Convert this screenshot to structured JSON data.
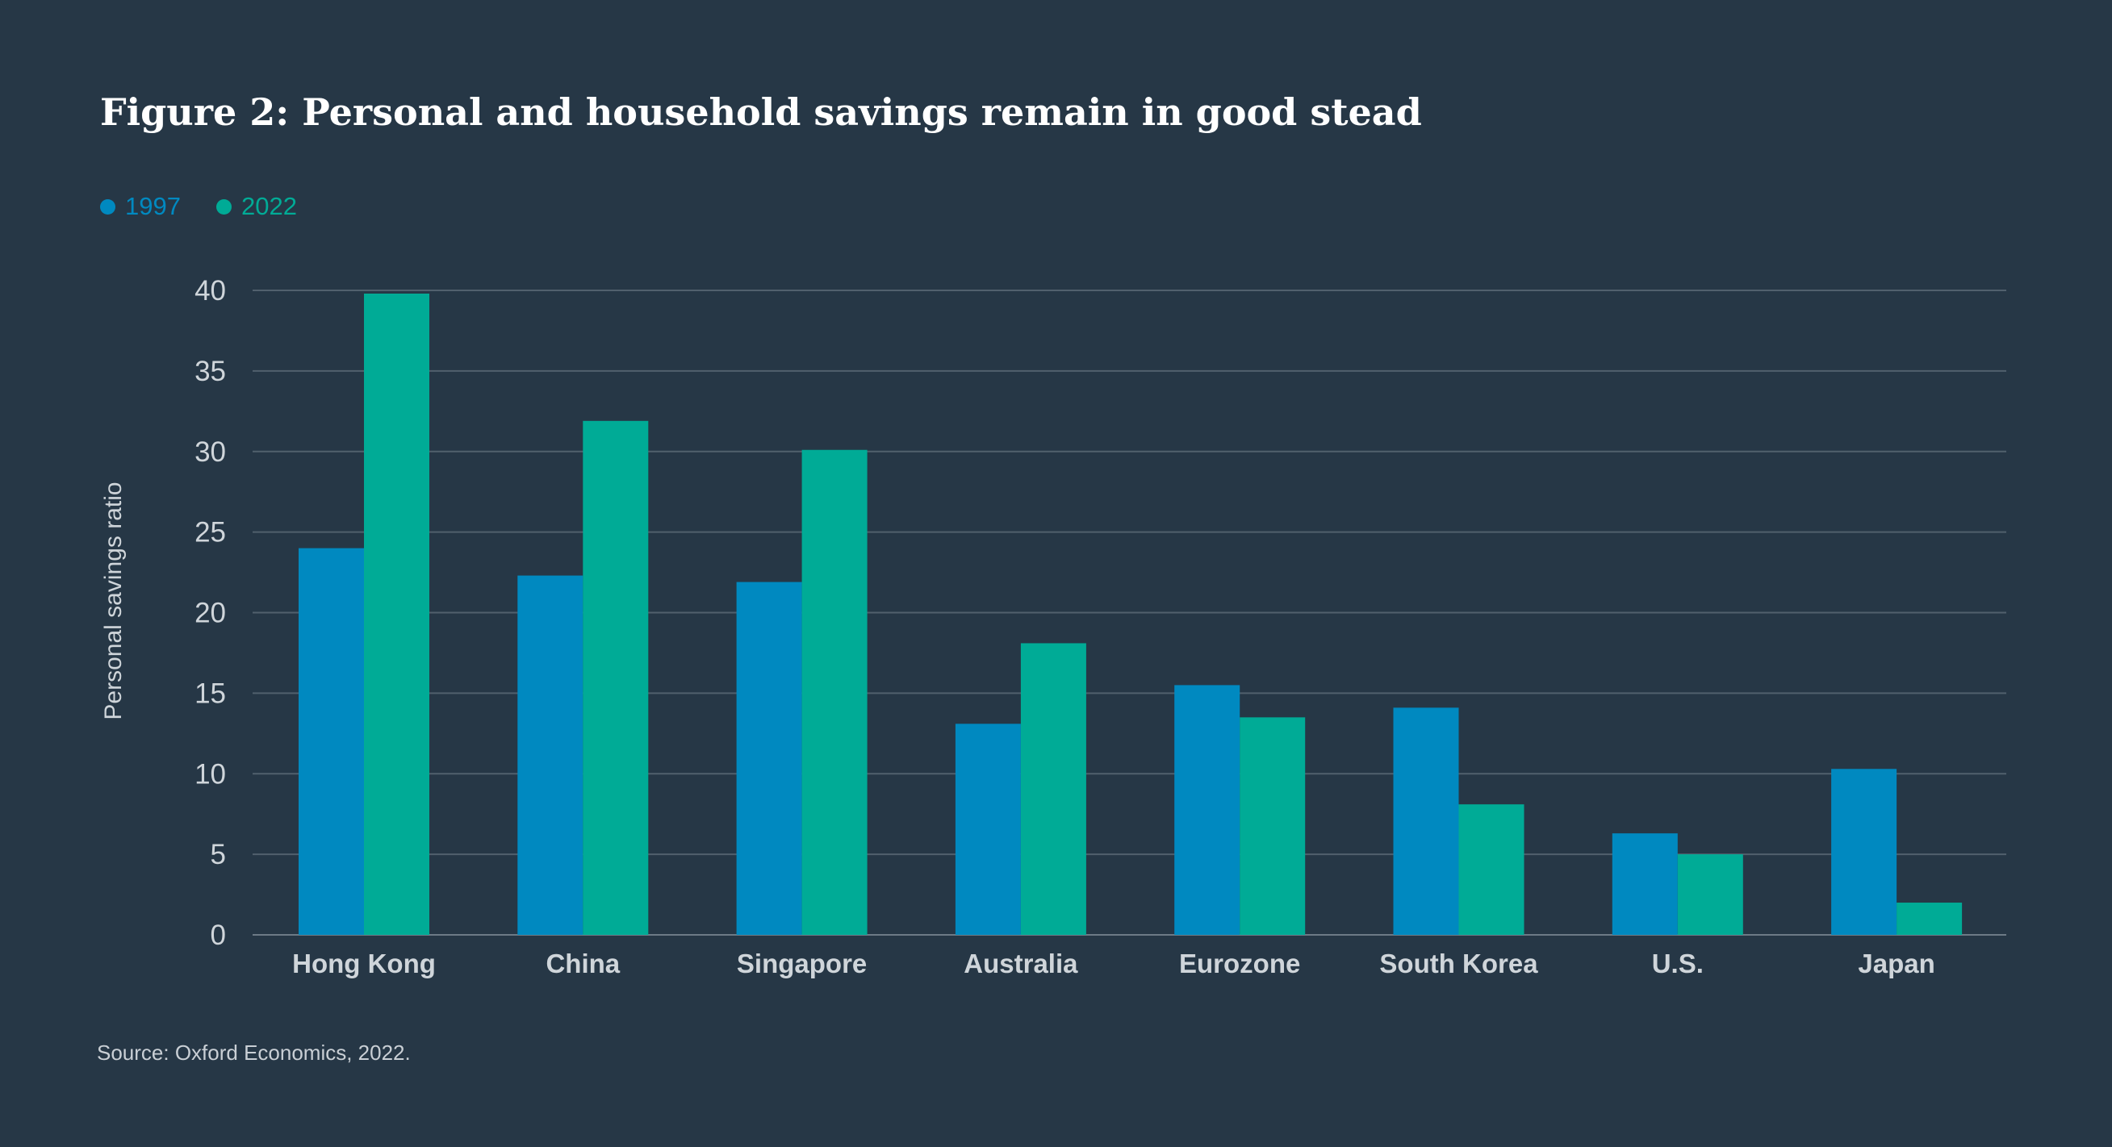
{
  "colors": {
    "background": "#263746",
    "series_1997": "#0089c0",
    "series_2022": "#00ab96",
    "gridline": "#51606d",
    "axis_text": "#cfd5da",
    "title_text": "#ffffff"
  },
  "legend": {
    "items": [
      {
        "label": "1997",
        "color": "#0089c0"
      },
      {
        "label": "2022",
        "color": "#00ab96"
      }
    ]
  },
  "chart_data": {
    "type": "bar",
    "title": "Figure 2: Personal and household savings remain in good stead",
    "xlabel": "",
    "ylabel": "Personal savings ratio",
    "ylim": [
      0,
      40
    ],
    "yticks": [
      0,
      5,
      10,
      15,
      20,
      25,
      30,
      35,
      40
    ],
    "grid": true,
    "legend_position": "top-left",
    "categories": [
      "Hong Kong",
      "China",
      "Singapore",
      "Australia",
      "Eurozone",
      "South Korea",
      "U.S.",
      "Japan"
    ],
    "series": [
      {
        "name": "1997",
        "color": "#0089c0",
        "values": [
          24.0,
          22.3,
          21.9,
          13.1,
          15.5,
          14.1,
          6.3,
          10.3
        ]
      },
      {
        "name": "2022",
        "color": "#00ab96",
        "values": [
          39.8,
          31.9,
          30.1,
          18.1,
          13.5,
          8.1,
          5.0,
          2.0
        ]
      }
    ],
    "source": "Source: Oxford Economics, 2022."
  }
}
